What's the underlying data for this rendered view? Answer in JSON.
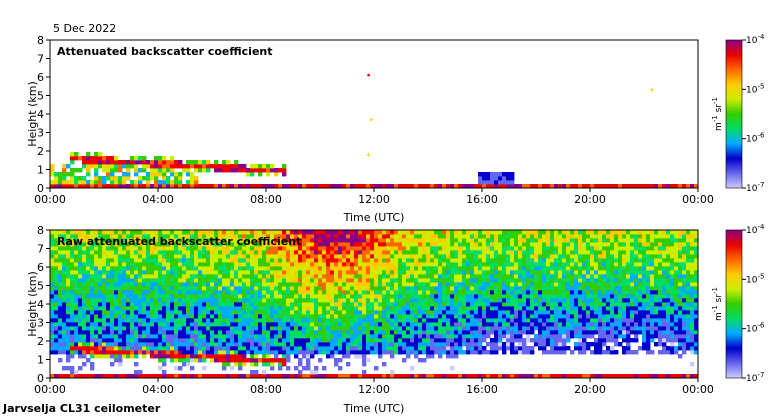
{
  "date": "5 Dec 2022",
  "footer": "Jarvselja CL31 ceilometer",
  "colors": {
    "cmap": [
      "#ccccff",
      "#6666ee",
      "#0000cc",
      "#00aaff",
      "#00dd66",
      "#33cc00",
      "#ccee00",
      "#ffcc00",
      "#ff6600",
      "#ee0000",
      "#880088"
    ]
  },
  "chart_data": [
    {
      "type": "heatmap",
      "title": "Attenuated backscatter coefficient",
      "xlabel": "Time (UTC)",
      "ylabel": "Height (km)",
      "xlim": [
        0,
        24
      ],
      "ylim": [
        0,
        8
      ],
      "x_ticks": [
        "00:00",
        "04:00",
        "08:00",
        "12:00",
        "16:00",
        "20:00",
        "00:00"
      ],
      "y_ticks": [
        "0",
        "1",
        "2",
        "3",
        "4",
        "5",
        "6",
        "7",
        "8"
      ],
      "colorbar": {
        "label_main": "m",
        "label_sup1": "-1",
        "label_mid": " sr",
        "label_sup2": "-1",
        "ticks": [
          {
            "base": "10",
            "exp": "-7"
          },
          {
            "base": "10",
            "exp": "-6"
          },
          {
            "base": "10",
            "exp": "-5"
          },
          {
            "base": "10",
            "exp": "-4"
          }
        ],
        "range_log10": [
          -7,
          -4
        ]
      },
      "features": {
        "cloud_layer": {
          "t_start": 0.8,
          "t_end": 8.8,
          "h_start": 1.6,
          "h_end": 0.9
        },
        "low_mixed_layer": {
          "t_start": 0,
          "t_end": 5.5,
          "top": 1.2
        },
        "fog_patch": {
          "t_start": 15.8,
          "t_end": 17.2,
          "top": 0.8
        },
        "isolated_returns": [
          {
            "t": 11.8,
            "h": 6.1
          },
          {
            "t": 11.9,
            "h": 3.7
          },
          {
            "t": 11.8,
            "h": 1.8
          },
          {
            "t": 22.3,
            "h": 5.3
          }
        ]
      }
    },
    {
      "type": "heatmap",
      "title": "Raw attenuated backscatter coefficient",
      "xlabel": "Time (UTC)",
      "ylabel": "Height (km)",
      "xlim": [
        0,
        24
      ],
      "ylim": [
        0,
        8
      ],
      "x_ticks": [
        "00:00",
        "04:00",
        "08:00",
        "12:00",
        "16:00",
        "20:00",
        "00:00"
      ],
      "y_ticks": [
        "0",
        "1",
        "2",
        "3",
        "4",
        "5",
        "6",
        "7",
        "8"
      ],
      "colorbar": {
        "label_main": "m",
        "label_sup1": "-1",
        "label_mid": " sr",
        "label_sup2": "-1",
        "ticks": [
          {
            "base": "10",
            "exp": "-7"
          },
          {
            "base": "10",
            "exp": "-6"
          },
          {
            "base": "10",
            "exp": "-5"
          },
          {
            "base": "10",
            "exp": "-4"
          }
        ],
        "range_log10": [
          -7,
          -4
        ]
      },
      "features": {
        "noise_peak_time": 10.5,
        "noise_clear_times": [
          17.5,
          21.5
        ],
        "cloud_layer": {
          "t_start": 0.8,
          "t_end": 8.8,
          "h_start": 1.6,
          "h_end": 0.9
        }
      }
    }
  ]
}
